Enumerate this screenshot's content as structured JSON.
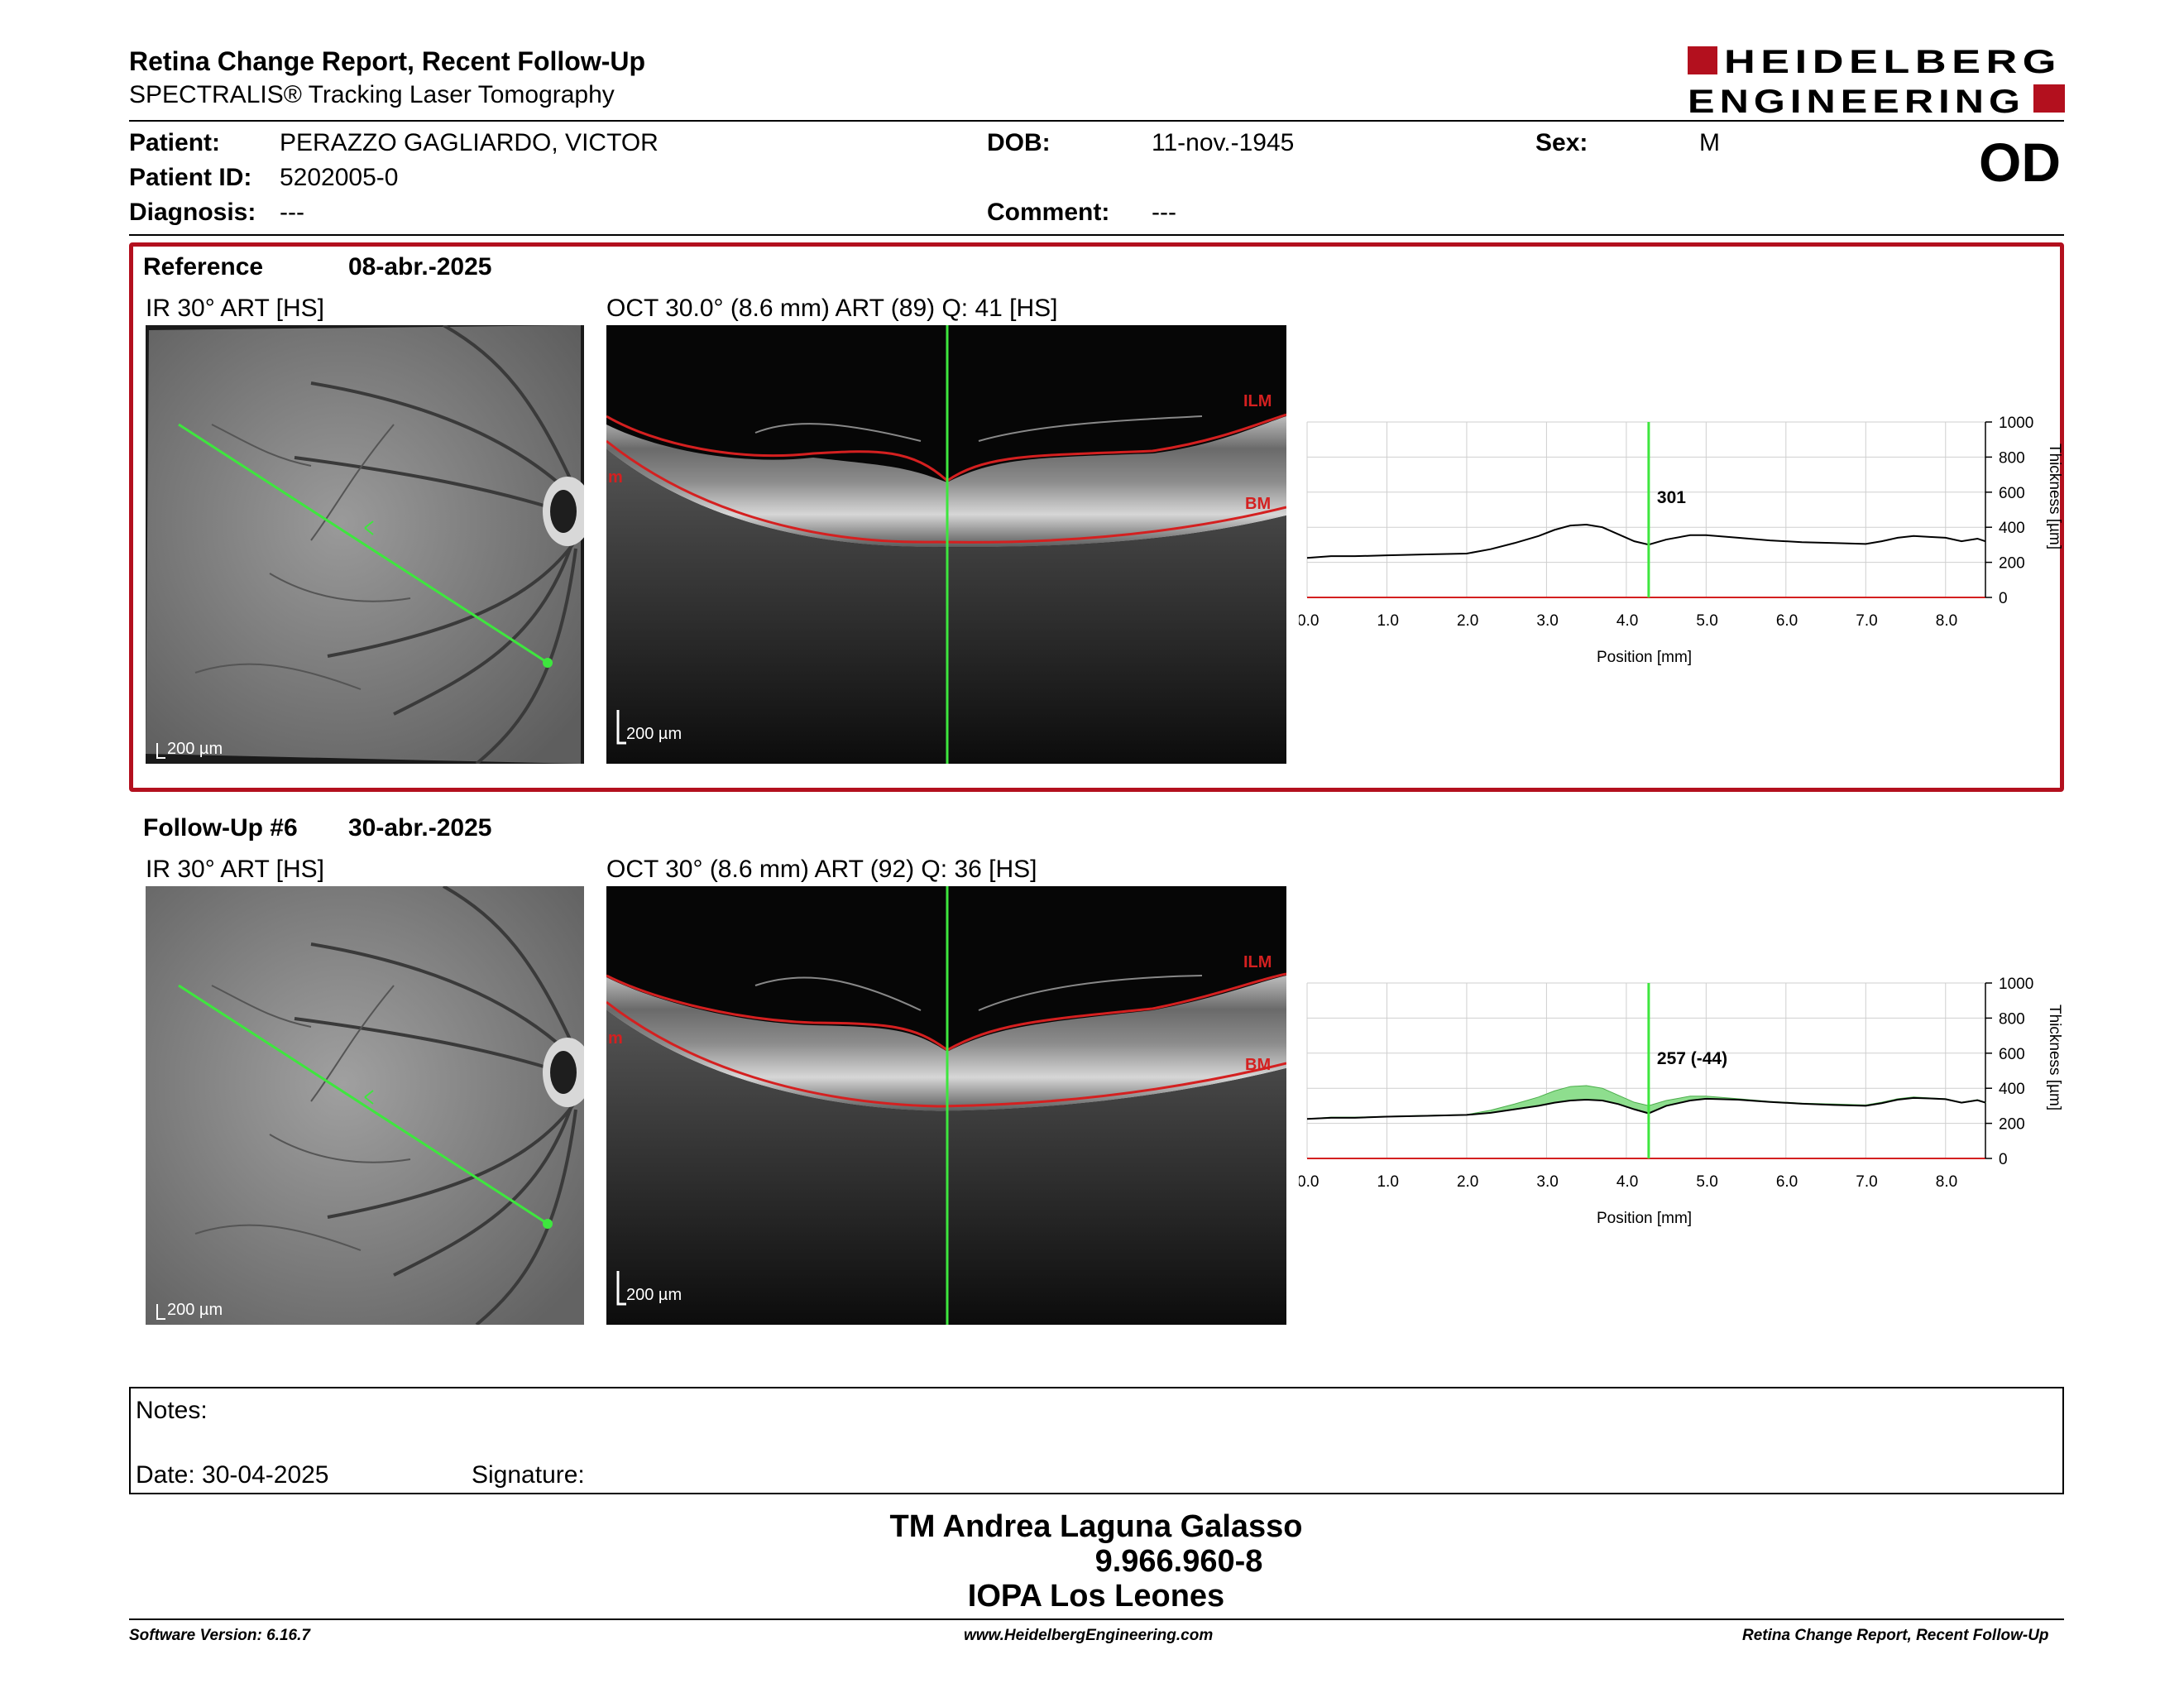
{
  "header": {
    "title": "Retina Change Report, Recent Follow-Up",
    "subtitle": "SPECTRALIS® Tracking Laser Tomography",
    "logo_line1": "HEIDELBERG",
    "logo_line2": "ENGINEERING",
    "eye": "OD"
  },
  "patient": {
    "patient_label": "Patient:",
    "patient_value": "PERAZZO GAGLIARDO, VICTOR",
    "id_label": "Patient ID:",
    "id_value": "5202005-0",
    "diagnosis_label": "Diagnosis:",
    "diagnosis_value": "---",
    "dob_label": "DOB:",
    "dob_value": "11-nov.-1945",
    "comment_label": "Comment:",
    "comment_value": "---",
    "sex_label": "Sex:",
    "sex_value": "M"
  },
  "reference": {
    "label": "Reference",
    "date": "08-abr.-2025",
    "ir_title": "IR 30° ART [HS]",
    "oct_title": "OCT 30.0° (8.6 mm) ART (89) Q: 41 [HS]",
    "scale_ir": "200 µm",
    "scale_oct": "200 µm",
    "ilm": "ILM",
    "bm": "BM",
    "m": "m"
  },
  "followup": {
    "label": "Follow-Up #6",
    "date": "30-abr.-2025",
    "ir_title": "IR 30° ART [HS]",
    "oct_title": "OCT 30° (8.6 mm) ART (92) Q: 36 [HS]",
    "scale_ir": "200 µm",
    "scale_oct": "200 µm",
    "ilm": "ILM",
    "bm": "BM",
    "m": "m"
  },
  "chart_data": [
    {
      "type": "line",
      "title": "",
      "xlabel": "Position [mm]",
      "ylabel": "Thickness [µm]",
      "xlim": [
        0,
        8.5
      ],
      "ylim": [
        0,
        1000
      ],
      "xticks": [
        "0.0",
        "1.0",
        "2.0",
        "3.0",
        "4.0",
        "5.0",
        "6.0",
        "7.0",
        "8.0"
      ],
      "yticks": [
        "0",
        "200",
        "400",
        "600",
        "800",
        "1000"
      ],
      "grid": true,
      "cursor_x": 4.28,
      "cursor_label": "301",
      "series": [
        {
          "x": [
            0,
            0.3,
            0.6,
            1.0,
            1.5,
            2.0,
            2.3,
            2.6,
            2.9,
            3.1,
            3.3,
            3.5,
            3.7,
            3.9,
            4.1,
            4.28,
            4.5,
            4.8,
            5.0,
            5.4,
            5.8,
            6.2,
            6.6,
            7.0,
            7.2,
            7.4,
            7.6,
            7.8,
            8.0,
            8.2,
            8.4,
            8.5
          ],
          "values": [
            225,
            235,
            235,
            240,
            245,
            250,
            275,
            310,
            350,
            385,
            410,
            415,
            400,
            360,
            320,
            301,
            330,
            355,
            355,
            340,
            325,
            315,
            310,
            305,
            320,
            340,
            350,
            345,
            340,
            320,
            335,
            320
          ]
        }
      ]
    },
    {
      "type": "line",
      "title": "",
      "xlabel": "Position [mm]",
      "ylabel": "Thickness [µm]",
      "xlim": [
        0,
        8.5
      ],
      "ylim": [
        0,
        1000
      ],
      "xticks": [
        "0.0",
        "1.0",
        "2.0",
        "3.0",
        "4.0",
        "5.0",
        "6.0",
        "7.0",
        "8.0"
      ],
      "yticks": [
        "0",
        "200",
        "400",
        "600",
        "800",
        "1000"
      ],
      "grid": true,
      "cursor_x": 4.28,
      "cursor_label": "257 (-44)",
      "fill_color": "#8ede8e",
      "series": [
        {
          "x": [
            0,
            0.3,
            0.6,
            1.0,
            1.5,
            2.0,
            2.3,
            2.6,
            2.9,
            3.1,
            3.3,
            3.5,
            3.7,
            3.9,
            4.1,
            4.28,
            4.5,
            4.8,
            5.0,
            5.4,
            5.8,
            6.2,
            6.6,
            7.0,
            7.2,
            7.4,
            7.6,
            7.8,
            8.0,
            8.2,
            8.4,
            8.5
          ],
          "values": [
            225,
            235,
            235,
            240,
            245,
            250,
            275,
            310,
            350,
            385,
            410,
            415,
            400,
            360,
            320,
            301,
            330,
            355,
            355,
            340,
            325,
            315,
            310,
            305,
            320,
            340,
            350,
            345,
            340,
            320,
            335,
            320
          ]
        },
        {
          "x": [
            0,
            0.3,
            0.6,
            1.0,
            1.5,
            2.0,
            2.3,
            2.6,
            2.9,
            3.1,
            3.3,
            3.5,
            3.7,
            3.9,
            4.1,
            4.28,
            4.5,
            4.8,
            5.0,
            5.4,
            5.8,
            6.2,
            6.6,
            7.0,
            7.2,
            7.4,
            7.6,
            7.8,
            8.0,
            8.2,
            8.4,
            8.5
          ],
          "values": [
            225,
            232,
            232,
            238,
            243,
            248,
            260,
            280,
            300,
            318,
            330,
            335,
            330,
            310,
            280,
            257,
            300,
            330,
            340,
            335,
            322,
            312,
            305,
            300,
            315,
            335,
            345,
            342,
            338,
            318,
            332,
            318
          ]
        }
      ]
    }
  ],
  "notes": {
    "notes_label": "Notes:",
    "date_label": "Date: 30-04-2025",
    "signature_label": "Signature:"
  },
  "signer": {
    "name": "TM Andrea Laguna Galasso",
    "id": "9.966.960-8",
    "institution": "IOPA Los Leones"
  },
  "footer": {
    "software": "Software Version: 6.16.7",
    "website": "www.HeidelbergEngineering.com",
    "report": "Retina Change Report, Recent Follow-Up"
  },
  "colors": {
    "accent_red": "#b3101e",
    "cursor_green": "#3ee63e",
    "layer_red": "#d42020"
  }
}
